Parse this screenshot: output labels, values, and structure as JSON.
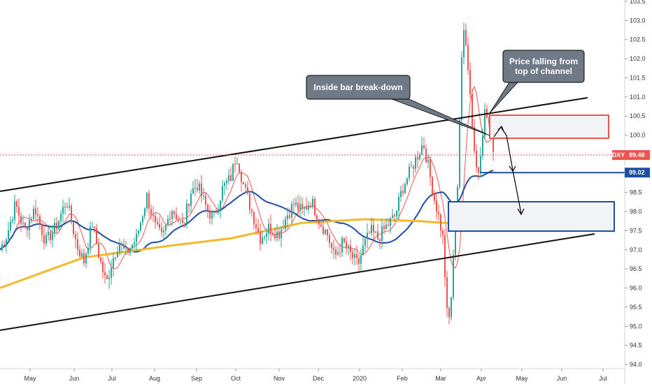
{
  "chart_data": {
    "type": "candlestick",
    "symbol": "DXY",
    "x_tick_labels": [
      "May",
      "Jun",
      "Jul",
      "Aug",
      "Sep",
      "Oct",
      "Nov",
      "Dec",
      "2020",
      "Feb",
      "Mar",
      "Apr",
      "May",
      "Jun",
      "Jul"
    ],
    "y_range": [
      94.0,
      103.5
    ],
    "y_tick_labels": [
      "103.5",
      "103.0",
      "102.5",
      "102.0",
      "101.5",
      "101.0",
      "100.5",
      "100.0",
      "99.5",
      "99.0",
      "98.5",
      "98.0",
      "97.5",
      "97.0",
      "96.5",
      "96.0",
      "95.5",
      "95.0",
      "94.5",
      "94.0"
    ],
    "last_price": "99.48",
    "level_price": "99.02",
    "annotations": [
      {
        "id": "callout-top",
        "lines": [
          "Price falling from",
          "top of channel"
        ]
      },
      {
        "id": "callout-inside",
        "lines": [
          "Inside bar break-down"
        ]
      }
    ],
    "price_keypoints": [
      {
        "d": 0,
        "v": 97.0
      },
      {
        "d": 10,
        "v": 97.4
      },
      {
        "d": 22,
        "v": 98.2
      },
      {
        "d": 35,
        "v": 97.5
      },
      {
        "d": 50,
        "v": 98.1
      },
      {
        "d": 65,
        "v": 97.2
      },
      {
        "d": 80,
        "v": 97.6
      },
      {
        "d": 95,
        "v": 98.3
      },
      {
        "d": 110,
        "v": 97.1
      },
      {
        "d": 120,
        "v": 96.7
      },
      {
        "d": 132,
        "v": 97.7
      },
      {
        "d": 142,
        "v": 96.8
      },
      {
        "d": 152,
        "v": 96.1
      },
      {
        "d": 160,
        "v": 96.7
      },
      {
        "d": 170,
        "v": 97.2
      },
      {
        "d": 180,
        "v": 96.9
      },
      {
        "d": 195,
        "v": 97.3
      },
      {
        "d": 210,
        "v": 98.4
      },
      {
        "d": 222,
        "v": 97.6
      },
      {
        "d": 232,
        "v": 97.3
      },
      {
        "d": 245,
        "v": 98.1
      },
      {
        "d": 262,
        "v": 97.6
      },
      {
        "d": 272,
        "v": 98.5
      },
      {
        "d": 282,
        "v": 98.7
      },
      {
        "d": 295,
        "v": 98.1
      },
      {
        "d": 305,
        "v": 97.8
      },
      {
        "d": 318,
        "v": 98.6
      },
      {
        "d": 330,
        "v": 98.9
      },
      {
        "d": 338,
        "v": 99.5
      },
      {
        "d": 348,
        "v": 98.7
      },
      {
        "d": 360,
        "v": 98.0
      },
      {
        "d": 372,
        "v": 97.3
      },
      {
        "d": 385,
        "v": 97.6
      },
      {
        "d": 398,
        "v": 97.4
      },
      {
        "d": 410,
        "v": 97.9
      },
      {
        "d": 420,
        "v": 98.2
      },
      {
        "d": 432,
        "v": 98.0
      },
      {
        "d": 445,
        "v": 98.3
      },
      {
        "d": 455,
        "v": 97.8
      },
      {
        "d": 468,
        "v": 97.4
      },
      {
        "d": 478,
        "v": 96.8
      },
      {
        "d": 490,
        "v": 97.2
      },
      {
        "d": 500,
        "v": 96.9
      },
      {
        "d": 512,
        "v": 96.6
      },
      {
        "d": 520,
        "v": 97.1
      },
      {
        "d": 530,
        "v": 97.5
      },
      {
        "d": 540,
        "v": 97.3
      },
      {
        "d": 552,
        "v": 97.6
      },
      {
        "d": 565,
        "v": 97.9
      },
      {
        "d": 575,
        "v": 98.6
      },
      {
        "d": 585,
        "v": 99.0
      },
      {
        "d": 595,
        "v": 99.4
      },
      {
        "d": 605,
        "v": 99.8
      },
      {
        "d": 612,
        "v": 99.2
      },
      {
        "d": 620,
        "v": 98.4
      },
      {
        "d": 628,
        "v": 97.8
      },
      {
        "d": 634,
        "v": 97.2
      },
      {
        "d": 638,
        "v": 95.5
      },
      {
        "d": 641,
        "v": 95.0
      },
      {
        "d": 646,
        "v": 96.0
      },
      {
        "d": 650,
        "v": 97.5
      },
      {
        "d": 654,
        "v": 98.7
      },
      {
        "d": 658,
        "v": 101.0
      },
      {
        "d": 662,
        "v": 102.8
      },
      {
        "d": 666,
        "v": 102.5
      },
      {
        "d": 670,
        "v": 101.6
      },
      {
        "d": 675,
        "v": 100.3
      },
      {
        "d": 679,
        "v": 99.4
      },
      {
        "d": 683,
        "v": 98.9
      },
      {
        "d": 688,
        "v": 99.8
      },
      {
        "d": 693,
        "v": 100.6
      },
      {
        "d": 698,
        "v": 100.4
      },
      {
        "d": 703,
        "v": 99.9
      },
      {
        "d": 707,
        "v": 99.5
      }
    ],
    "moving_averages": [
      {
        "id": "ma-fast",
        "color": "#ef5350",
        "period": 8
      },
      {
        "id": "ma-mid",
        "color": "#1e4fa0",
        "period": 30
      },
      {
        "id": "ma-slow",
        "color": "#f5b82a",
        "points": [
          [
            0,
            96.0
          ],
          [
            120,
            96.8
          ],
          [
            240,
            97.1
          ],
          [
            330,
            97.3
          ],
          [
            430,
            97.7
          ],
          [
            520,
            97.8
          ],
          [
            600,
            97.75
          ],
          [
            640,
            97.7
          ],
          [
            680,
            97.95
          ],
          [
            707,
            98.15
          ]
        ]
      }
    ],
    "colors": {
      "up": "#26a69a",
      "down": "#ef5350",
      "channel": "#111111",
      "zone_red": "#ef5350",
      "zone_blue": "#1e4fa0",
      "zone_fill": "#f1f3f7",
      "callout_fill": "#707a86",
      "badge_red": "#ef5350",
      "badge_blue": "#1e4fa0"
    }
  }
}
